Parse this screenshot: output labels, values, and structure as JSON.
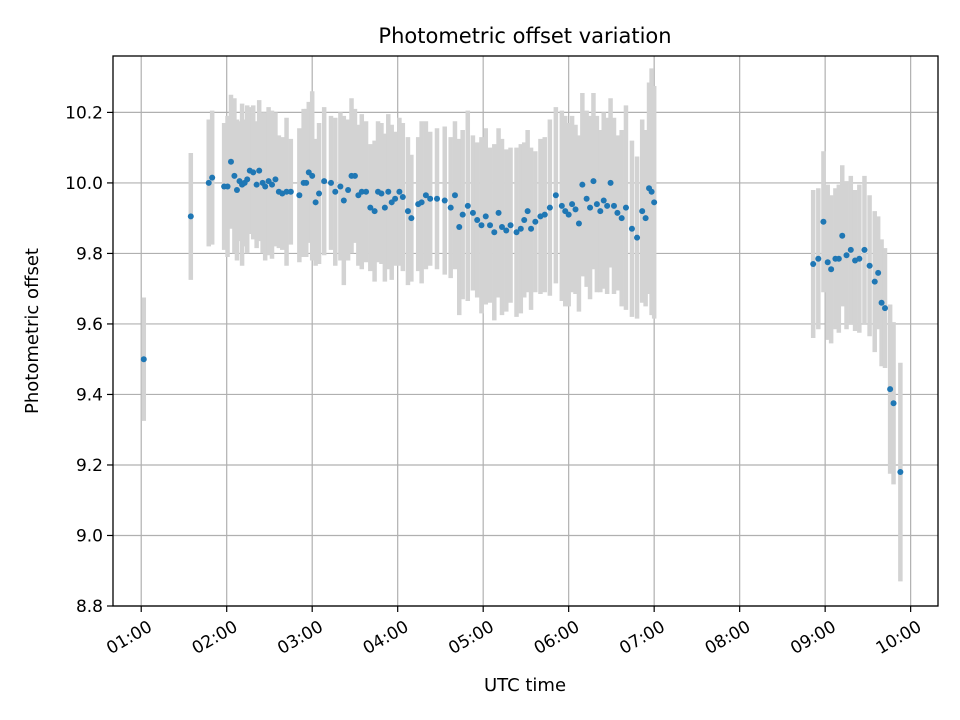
{
  "chart_data": {
    "type": "scatter",
    "title": "Photometric offset variation",
    "xlabel": "UTC time",
    "ylabel": "Photometric offset",
    "x_unit": "hours UTC",
    "xlim": [
      0.67,
      10.32
    ],
    "ylim": [
      8.8,
      10.36
    ],
    "grid": true,
    "xticks": [
      {
        "value": 1,
        "label": "01:00"
      },
      {
        "value": 2,
        "label": "02:00"
      },
      {
        "value": 3,
        "label": "03:00"
      },
      {
        "value": 4,
        "label": "04:00"
      },
      {
        "value": 5,
        "label": "05:00"
      },
      {
        "value": 6,
        "label": "06:00"
      },
      {
        "value": 7,
        "label": "07:00"
      },
      {
        "value": 8,
        "label": "08:00"
      },
      {
        "value": 9,
        "label": "09:00"
      },
      {
        "value": 10,
        "label": "10:00"
      }
    ],
    "yticks": [
      {
        "value": 8.8,
        "label": "8.8"
      },
      {
        "value": 9.0,
        "label": "9.0"
      },
      {
        "value": 9.2,
        "label": "9.2"
      },
      {
        "value": 9.4,
        "label": "9.4"
      },
      {
        "value": 9.6,
        "label": "9.6"
      },
      {
        "value": 9.8,
        "label": "9.8"
      },
      {
        "value": 10.0,
        "label": "10.0"
      },
      {
        "value": 10.2,
        "label": "10.2"
      }
    ],
    "colors": {
      "points": "#1f77b4",
      "errorbars": "#d3d3d3",
      "grid": "#b0b0b0"
    },
    "series": [
      {
        "x": [
          1.03,
          1.58,
          1.79,
          1.83,
          1.97,
          2.01,
          2.05,
          2.09,
          2.12,
          2.15,
          2.18,
          2.21,
          2.24,
          2.27,
          2.31,
          2.35,
          2.38,
          2.42,
          2.45,
          2.49,
          2.53,
          2.57,
          2.61,
          2.65,
          2.7,
          2.75,
          2.85,
          2.9,
          2.93,
          2.96,
          3.0,
          3.04,
          3.08,
          3.14,
          3.22,
          3.27,
          3.33,
          3.37,
          3.42,
          3.46,
          3.5,
          3.54,
          3.58,
          3.63,
          3.68,
          3.73,
          3.77,
          3.81,
          3.85,
          3.89,
          3.93,
          3.97,
          4.02,
          4.06,
          4.12,
          4.16,
          4.24,
          4.28,
          4.33,
          4.38,
          4.46,
          4.55,
          4.62,
          4.67,
          4.72,
          4.76,
          4.82,
          4.88,
          4.93,
          4.98,
          5.03,
          5.08,
          5.13,
          5.18,
          5.22,
          5.27,
          5.32,
          5.39,
          5.44,
          5.48,
          5.52,
          5.56,
          5.61,
          5.67,
          5.72,
          5.78,
          5.85,
          5.92,
          5.96,
          6.0,
          6.04,
          6.08,
          6.12,
          6.16,
          6.21,
          6.25,
          6.29,
          6.33,
          6.37,
          6.41,
          6.45,
          6.49,
          6.53,
          6.57,
          6.62,
          6.67,
          6.74,
          6.8,
          6.86,
          6.9,
          6.94,
          6.97,
          7.0,
          8.86,
          8.92,
          8.98,
          9.03,
          9.07,
          9.12,
          9.16,
          9.2,
          9.25,
          9.3,
          9.35,
          9.4,
          9.46,
          9.52,
          9.58,
          9.62,
          9.66,
          9.7,
          9.76,
          9.8,
          9.88
        ],
        "y": [
          9.5,
          9.905,
          10.0,
          10.015,
          9.99,
          9.99,
          10.06,
          10.02,
          9.98,
          10.005,
          9.995,
          10.0,
          10.01,
          10.035,
          10.03,
          9.995,
          10.035,
          10.0,
          9.99,
          10.005,
          9.995,
          10.01,
          9.975,
          9.97,
          9.975,
          9.975,
          9.965,
          10.0,
          10.0,
          10.03,
          10.02,
          9.945,
          9.97,
          10.005,
          10.0,
          9.975,
          9.99,
          9.95,
          9.98,
          10.02,
          10.02,
          9.965,
          9.975,
          9.975,
          9.93,
          9.92,
          9.975,
          9.97,
          9.93,
          9.975,
          9.945,
          9.955,
          9.975,
          9.96,
          9.92,
          9.9,
          9.94,
          9.945,
          9.965,
          9.955,
          9.955,
          9.95,
          9.93,
          9.965,
          9.875,
          9.91,
          9.935,
          9.915,
          9.895,
          9.88,
          9.905,
          9.88,
          9.86,
          9.915,
          9.875,
          9.865,
          9.88,
          9.86,
          9.87,
          9.895,
          9.92,
          9.87,
          9.89,
          9.905,
          9.91,
          9.93,
          9.965,
          9.935,
          9.92,
          9.91,
          9.94,
          9.925,
          9.885,
          9.995,
          9.955,
          9.93,
          10.005,
          9.94,
          9.92,
          9.95,
          9.935,
          10.0,
          9.935,
          9.915,
          9.9,
          9.93,
          9.87,
          9.845,
          9.92,
          9.9,
          9.985,
          9.975,
          9.945,
          9.77,
          9.785,
          9.89,
          9.775,
          9.755,
          9.785,
          9.785,
          9.85,
          9.795,
          9.81,
          9.78,
          9.785,
          9.81,
          9.765,
          9.72,
          9.745,
          9.66,
          9.645,
          9.415,
          9.375,
          9.18
        ],
        "yerr": [
          0.175,
          0.18,
          0.18,
          0.19,
          0.18,
          0.2,
          0.19,
          0.22,
          0.2,
          0.17,
          0.23,
          0.18,
          0.21,
          0.18,
          0.19,
          0.18,
          0.2,
          0.2,
          0.21,
          0.21,
          0.21,
          0.19,
          0.16,
          0.16,
          0.21,
          0.15,
          0.19,
          0.21,
          0.21,
          0.2,
          0.24,
          0.18,
          0.2,
          0.21,
          0.19,
          0.21,
          0.21,
          0.24,
          0.2,
          0.22,
          0.19,
          0.2,
          0.22,
          0.2,
          0.18,
          0.2,
          0.2,
          0.2,
          0.21,
          0.22,
          0.22,
          0.19,
          0.21,
          0.21,
          0.21,
          0.18,
          0.19,
          0.23,
          0.21,
          0.19,
          0.2,
          0.21,
          0.2,
          0.21,
          0.25,
          0.24,
          0.27,
          0.22,
          0.22,
          0.25,
          0.25,
          0.22,
          0.25,
          0.24,
          0.25,
          0.23,
          0.22,
          0.24,
          0.24,
          0.22,
          0.23,
          0.23,
          0.2,
          0.22,
          0.22,
          0.25,
          0.25,
          0.27,
          0.27,
          0.26,
          0.25,
          0.24,
          0.25,
          0.26,
          0.25,
          0.26,
          0.25,
          0.25,
          0.23,
          0.25,
          0.25,
          0.24,
          0.25,
          0.22,
          0.25,
          0.29,
          0.25,
          0.23,
          0.26,
          0.25,
          0.3,
          0.35,
          0.33,
          0.21,
          0.2,
          0.2,
          0.22,
          0.21,
          0.2,
          0.21,
          0.2,
          0.21,
          0.21,
          0.2,
          0.21,
          0.21,
          0.2,
          0.2,
          0.16,
          0.18,
          0.17,
          0.24,
          0.23,
          0.31
        ]
      }
    ]
  }
}
